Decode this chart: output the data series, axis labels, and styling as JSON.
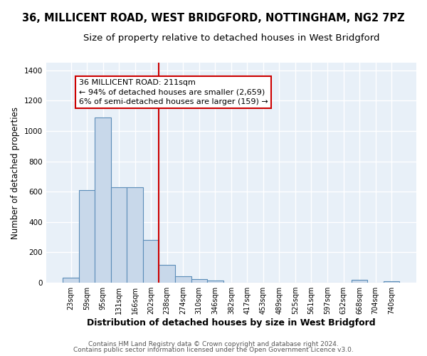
{
  "title1": "36, MILLICENT ROAD, WEST BRIDGFORD, NOTTINGHAM, NG2 7PZ",
  "title2": "Size of property relative to detached houses in West Bridgford",
  "xlabel": "Distribution of detached houses by size in West Bridgford",
  "ylabel": "Number of detached properties",
  "bin_labels": [
    "23sqm",
    "59sqm",
    "95sqm",
    "131sqm",
    "166sqm",
    "202sqm",
    "238sqm",
    "274sqm",
    "310sqm",
    "346sqm",
    "382sqm",
    "417sqm",
    "453sqm",
    "489sqm",
    "525sqm",
    "561sqm",
    "597sqm",
    "632sqm",
    "668sqm",
    "704sqm",
    "740sqm"
  ],
  "bin_values": [
    33,
    611,
    1090,
    631,
    631,
    280,
    120,
    44,
    22,
    15,
    0,
    0,
    0,
    0,
    0,
    0,
    0,
    0,
    20,
    0,
    11
  ],
  "bar_color": "#c8d8ea",
  "bar_edge_color": "#5b8db8",
  "vline_color": "#cc0000",
  "annotation_text": "36 MILLICENT ROAD: 211sqm\n← 94% of detached houses are smaller (2,659)\n6% of semi-detached houses are larger (159) →",
  "annotation_box_color": "white",
  "annotation_box_edgecolor": "#cc0000",
  "footnote1": "Contains HM Land Registry data © Crown copyright and database right 2024.",
  "footnote2": "Contains public sector information licensed under the Open Government Licence v3.0.",
  "ylim": [
    0,
    1450
  ],
  "background_color": "#e8f0f8",
  "grid_color": "white",
  "title1_fontsize": 10.5,
  "title2_fontsize": 9.5,
  "xlabel_fontsize": 9,
  "ylabel_fontsize": 8.5,
  "tick_fontsize": 7,
  "annotation_fontsize": 8,
  "footnote_fontsize": 6.5
}
